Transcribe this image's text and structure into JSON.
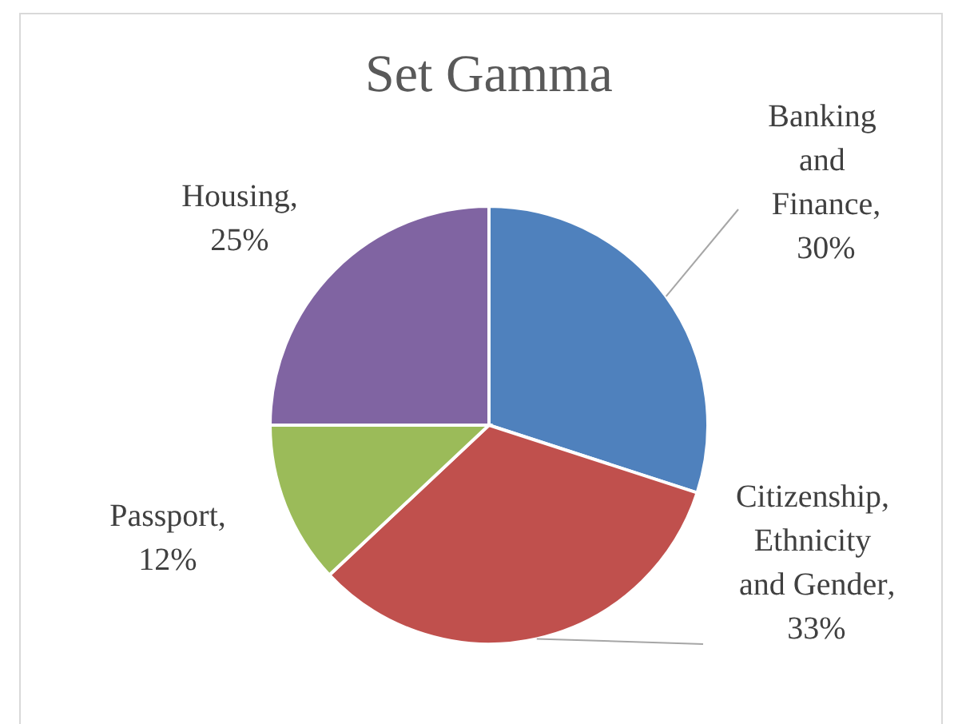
{
  "chart_data": {
    "type": "pie",
    "title": "Set Gamma",
    "categories": [
      "Banking and Finance",
      "Citizenship, Ethnicity and Gender",
      "Passport",
      "Housing"
    ],
    "values": [
      30,
      33,
      12,
      25
    ],
    "value_labels": [
      ", 30%",
      ", 33%",
      ", 12%",
      ", 25%"
    ],
    "colors": [
      "#4f81bd",
      "#c0504d",
      "#9bbb59",
      "#8064a2"
    ]
  }
}
